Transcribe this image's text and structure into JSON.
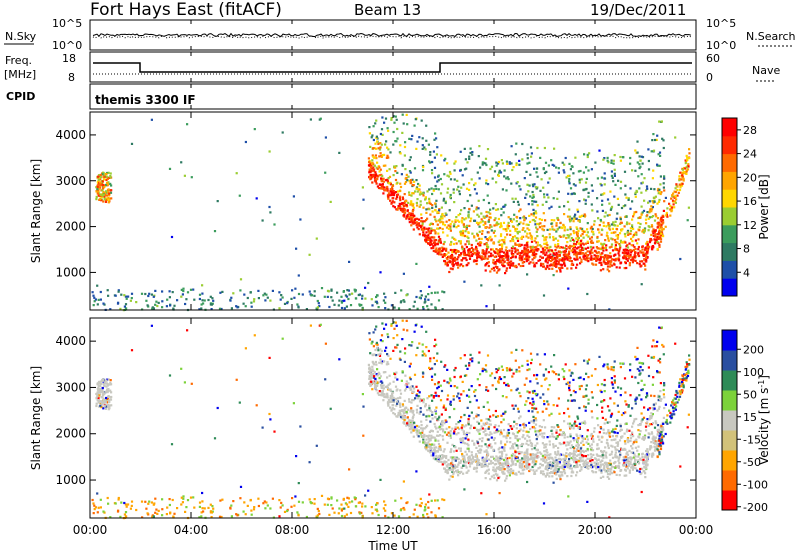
{
  "header": {
    "site": "Fort Hays East (fitACF)",
    "beam": "Beam 13",
    "date": "19/Dec/2011"
  },
  "noise_panel": {
    "left_label": "N.Sky",
    "left_ticks": [
      "10^5",
      "10^0"
    ],
    "right_ticks": [
      "10^5",
      "10^0"
    ],
    "right_label": "N.Search"
  },
  "freq_panel": {
    "left_label_1": "Freq.",
    "left_label_2": "[MHz]",
    "left_ticks": [
      "18",
      "8"
    ],
    "right_ticks": [
      "60",
      "0"
    ],
    "right_label": "Nave"
  },
  "cpid_panel": {
    "label": "CPID",
    "program": "themis 3300 IF"
  },
  "colors": {
    "power_scale": [
      "#0000ee",
      "#1e4fa8",
      "#2e7a62",
      "#3b9c5c",
      "#9acd32",
      "#ffd700",
      "#ffa500",
      "#ff6a00",
      "#ff2a00",
      "#ff0000"
    ],
    "velocity_scale": [
      "#ff0000",
      "#ff6a00",
      "#ffa500",
      "#d2c27a",
      "#c8c8c0",
      "#7cd23a",
      "#2e8b57",
      "#2a4fa0",
      "#0000ee"
    ],
    "ground_scatter": "#c8c8c0"
  },
  "chart_data": [
    {
      "type": "heatmap",
      "name": "power",
      "ylabel": "Slant Range [km]",
      "xlabel": "Time UT",
      "x_ticks": [
        "00:00",
        "04:00",
        "08:00",
        "12:00",
        "16:00",
        "20:00",
        "00:00"
      ],
      "x_range_hours": [
        0,
        24
      ],
      "y_ticks": [
        1000,
        2000,
        3000,
        4000
      ],
      "ylim": [
        180,
        4500
      ],
      "colorbar_label": "Power [dB]",
      "colorbar_ticks": [
        4,
        8,
        12,
        16,
        20,
        24,
        28
      ],
      "colorbar_range": [
        0,
        30
      ],
      "features": [
        {
          "feature": "early scatter",
          "time_start": "00:15",
          "time_end": "00:45",
          "range_km": [
            2600,
            3200
          ],
          "power_db": [
            12,
            26
          ]
        },
        {
          "feature": "main band",
          "time_start": "13:00",
          "time_end": "22:30",
          "range_km": [
            1000,
            1400
          ],
          "power_db": [
            24,
            30
          ]
        },
        {
          "feature": "upper band",
          "time_start": "11:00",
          "time_end": "23:00",
          "range_km": [
            1400,
            2500
          ],
          "power_db": [
            8,
            20
          ]
        },
        {
          "feature": "low range sporadic",
          "time_start": "00:00",
          "time_end": "14:00",
          "range_km": [
            200,
            600
          ],
          "power_db": [
            4,
            12
          ]
        }
      ]
    },
    {
      "type": "heatmap",
      "name": "velocity",
      "ylabel": "Slant Range [km]",
      "xlabel": "Time UT",
      "x_ticks": [
        "00:00",
        "04:00",
        "08:00",
        "12:00",
        "16:00",
        "20:00",
        "00:00"
      ],
      "x_range_hours": [
        0,
        24
      ],
      "y_ticks": [
        1000,
        2000,
        3000,
        4000
      ],
      "ylim": [
        180,
        4500
      ],
      "colorbar_label": "Velocity [m s^-1]",
      "colorbar_ticks": [
        200,
        100,
        50,
        15,
        -15,
        -50,
        -100,
        -200
      ],
      "colorbar_range": [
        -250,
        250
      ]
    }
  ],
  "axes": {
    "time_label": "Time UT",
    "range_label": "Slant Range [km]",
    "power_label": "Power [dB]",
    "velocity_label": "Velocity [m s",
    "velocity_label_sup": "-1",
    "velocity_label_end": "]"
  }
}
